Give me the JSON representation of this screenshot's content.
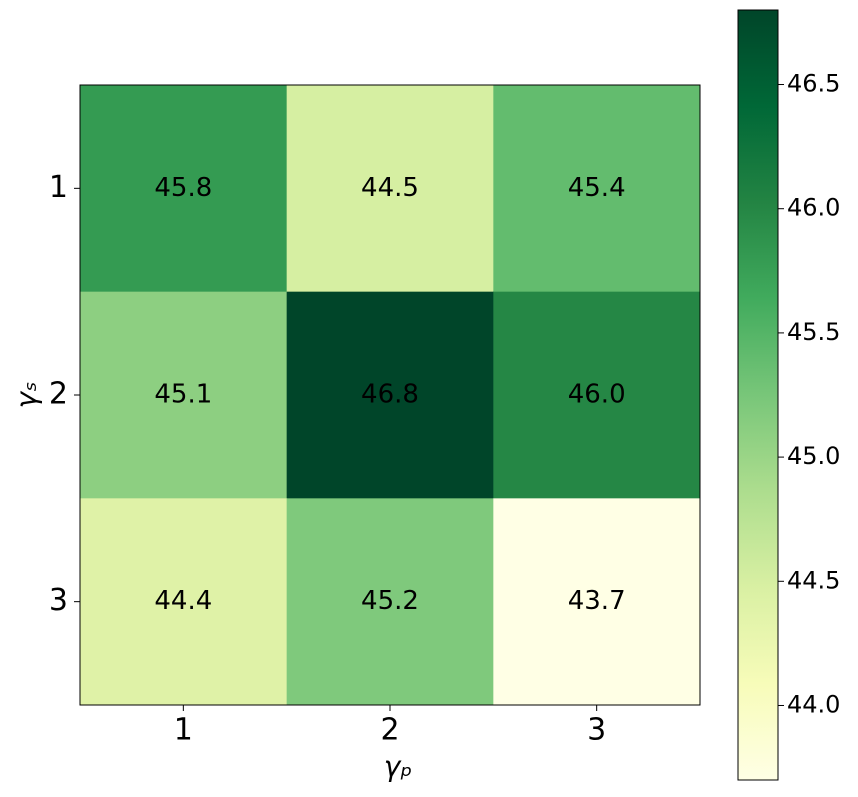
{
  "chart_data": {
    "type": "heatmap",
    "x_categories": [
      "1",
      "2",
      "3"
    ],
    "y_categories": [
      "1",
      "2",
      "3"
    ],
    "xlabel": "γₚ",
    "ylabel": "γₛ",
    "values": [
      [
        45.8,
        44.5,
        45.4
      ],
      [
        45.1,
        46.8,
        46.0
      ],
      [
        44.4,
        45.2,
        43.7
      ]
    ],
    "value_labels": [
      [
        "45.8",
        "44.5",
        "45.4"
      ],
      [
        "45.1",
        "46.8",
        "46.0"
      ],
      [
        "44.4",
        "45.2",
        "43.7"
      ]
    ],
    "colormap": "YlGn",
    "clim": [
      43.7,
      46.8
    ],
    "cticks": [
      {
        "value": 44.0,
        "label": "44.0"
      },
      44.5,
      {
        "value": 45.0,
        "label": "45.0"
      },
      45.5,
      {
        "value": 46.0,
        "label": "46.0"
      },
      46.5
    ]
  }
}
